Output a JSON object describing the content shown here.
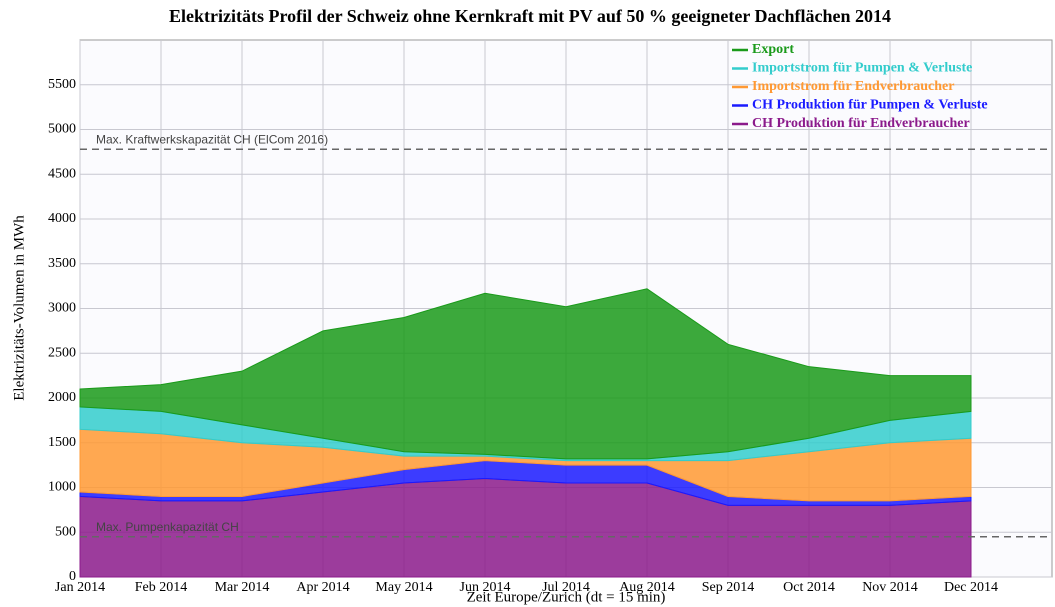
{
  "chart_data": {
    "type": "stacked_area",
    "title": "Elektrizitäts Profil der Schweiz ohne Kernkraft mit PV auf 50 % geeigneter Dachflächen 2014",
    "x_label": "Zeit Europe/Zurich (dt = 15 min)",
    "y_label": "Elektrizitäts-Volumen in MWh",
    "categories": [
      "Jan 2014",
      "Feb 2014",
      "Mar 2014",
      "Apr 2014",
      "May 2014",
      "Jun 2014",
      "Jul 2014",
      "Aug 2014",
      "Sep 2014",
      "Oct 2014",
      "Nov 2014",
      "Dec 2014"
    ],
    "series": [
      {
        "name": "CH Produktion für Endverbraucher",
        "color": "#8b1a8b",
        "values": [
          900,
          850,
          850,
          950,
          1050,
          1100,
          1050,
          1050,
          800,
          800,
          800,
          850
        ]
      },
      {
        "name": "CH Produktion für Pumpen & Verluste",
        "color": "#1a1aff",
        "values": [
          50,
          50,
          50,
          100,
          150,
          200,
          200,
          200,
          100,
          50,
          50,
          50
        ]
      },
      {
        "name": "Importstrom für Endverbraucher",
        "color": "#ff9933",
        "values": [
          700,
          700,
          600,
          400,
          150,
          50,
          50,
          50,
          400,
          550,
          650,
          650
        ]
      },
      {
        "name": "Importstrom für Pumpen & Verluste",
        "color": "#33cccc",
        "values": [
          250,
          250,
          200,
          100,
          50,
          20,
          20,
          20,
          100,
          150,
          250,
          300
        ]
      },
      {
        "name": "Export",
        "color": "#1a9a1a",
        "values": [
          200,
          300,
          600,
          1200,
          1500,
          1800,
          1700,
          1900,
          1200,
          800,
          500,
          400
        ]
      }
    ],
    "reference_lines": [
      {
        "value": 4780,
        "label": "Max. Kraftwerkskapazität CH  (ElCom 2016)"
      },
      {
        "value": 450,
        "label": "Max. Pumpenkapazität CH"
      }
    ],
    "ylim": [
      0,
      6000
    ],
    "yticks": [
      0,
      500,
      1000,
      1500,
      2000,
      2500,
      3000,
      3500,
      4000,
      4500,
      5000,
      5500
    ],
    "grid": true,
    "legend": "top-right"
  }
}
